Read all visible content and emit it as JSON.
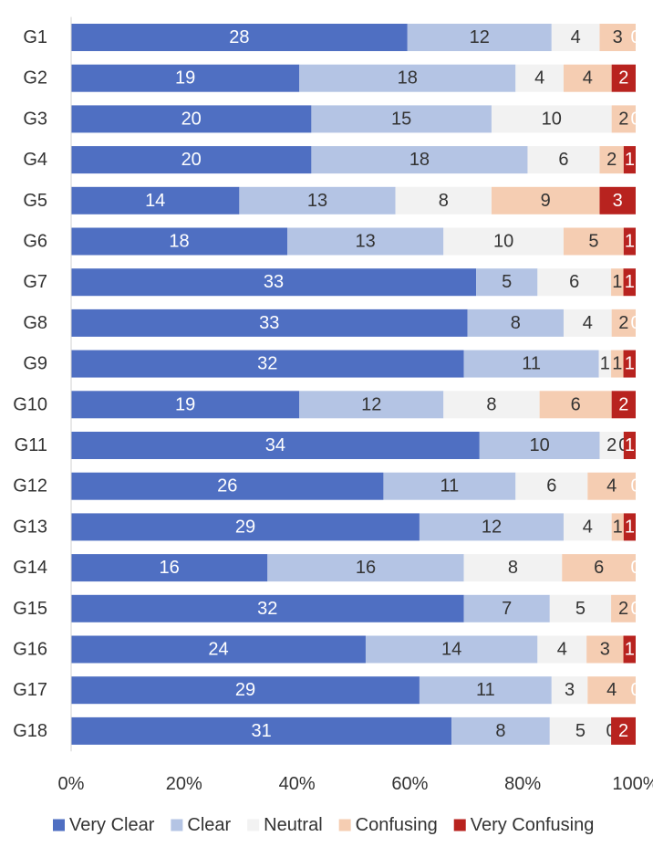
{
  "chart_data": {
    "type": "bar",
    "orientation": "horizontal",
    "stacked": "percent",
    "categories": [
      "G1",
      "G2",
      "G3",
      "G4",
      "G5",
      "G6",
      "G7",
      "G8",
      "G9",
      "G10",
      "G11",
      "G12",
      "G13",
      "G14",
      "G15",
      "G16",
      "G17",
      "G18"
    ],
    "series": [
      {
        "name": "Very Clear",
        "color": "#4f6fc2",
        "values": [
          28,
          19,
          20,
          20,
          14,
          18,
          33,
          33,
          32,
          19,
          34,
          26,
          29,
          16,
          32,
          24,
          29,
          31
        ]
      },
      {
        "name": "Clear",
        "color": "#b4c4e4",
        "values": [
          12,
          18,
          15,
          18,
          13,
          13,
          5,
          8,
          11,
          12,
          10,
          11,
          12,
          16,
          7,
          14,
          11,
          8
        ]
      },
      {
        "name": "Neutral",
        "color": "#f2f2f2",
        "values": [
          4,
          4,
          10,
          6,
          8,
          10,
          6,
          4,
          1,
          8,
          2,
          6,
          4,
          8,
          5,
          4,
          3,
          5
        ]
      },
      {
        "name": "Confusing",
        "color": "#f5cdb2",
        "values": [
          3,
          4,
          2,
          2,
          9,
          5,
          1,
          2,
          1,
          6,
          0,
          4,
          1,
          6,
          2,
          3,
          4,
          0
        ]
      },
      {
        "name": "Very Confusing",
        "color": "#b8231f",
        "values": [
          0,
          2,
          0,
          1,
          3,
          1,
          1,
          0,
          1,
          2,
          1,
          0,
          1,
          0,
          0,
          1,
          0,
          2
        ]
      }
    ],
    "x_ticks": [
      "0%",
      "20%",
      "40%",
      "60%",
      "80%",
      "100%"
    ],
    "xlim": [
      0,
      100
    ],
    "legend_position": "bottom",
    "grid": false
  }
}
